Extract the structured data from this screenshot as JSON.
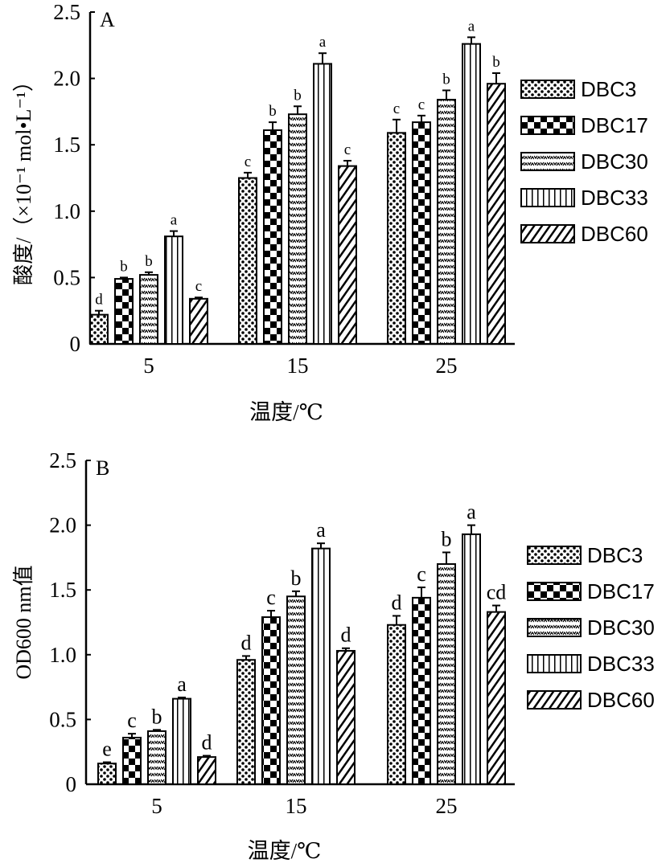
{
  "chart_data": [
    {
      "type": "bar",
      "panel": "A",
      "title": "A",
      "xlabel": "温度/℃",
      "ylabel": "酸度/（×10⁻¹ mol•L⁻¹）",
      "ylim": [
        0,
        2.5
      ],
      "yticks": [
        "0",
        "0.5",
        "1.0",
        "1.5",
        "2.0",
        "2.5"
      ],
      "categories": [
        "5",
        "15",
        "25"
      ],
      "legend_position": "right",
      "series": [
        {
          "name": "DBC3",
          "values": [
            0.22,
            1.25,
            1.59
          ],
          "errors": [
            0.03,
            0.04,
            0.1
          ],
          "letters": [
            "d",
            "c",
            "c"
          ]
        },
        {
          "name": "DBC17",
          "values": [
            0.49,
            1.61,
            1.67
          ],
          "errors": [
            0.01,
            0.06,
            0.05
          ],
          "letters": [
            "b",
            "b",
            "c"
          ]
        },
        {
          "name": "DBC30",
          "values": [
            0.52,
            1.73,
            1.84
          ],
          "errors": [
            0.02,
            0.06,
            0.07
          ],
          "letters": [
            "b",
            "b",
            "b"
          ]
        },
        {
          "name": "DBC33",
          "values": [
            0.81,
            2.11,
            2.26
          ],
          "errors": [
            0.04,
            0.08,
            0.05
          ],
          "letters": [
            "a",
            "a",
            "a"
          ]
        },
        {
          "name": "DBC60",
          "values": [
            0.34,
            1.34,
            1.96
          ],
          "errors": [
            0.01,
            0.04,
            0.08
          ],
          "letters": [
            "c",
            "c",
            "b"
          ]
        }
      ]
    },
    {
      "type": "bar",
      "panel": "B",
      "title": "B",
      "xlabel": "温度/℃",
      "ylabel": "OD600 nm值",
      "ylim": [
        0,
        2.5
      ],
      "yticks": [
        "0",
        "0.5",
        "1.0",
        "1.5",
        "2.0",
        "2.5"
      ],
      "categories": [
        "5",
        "15",
        "25"
      ],
      "legend_position": "right",
      "series": [
        {
          "name": "DBC3",
          "values": [
            0.16,
            0.96,
            1.23
          ],
          "errors": [
            0.01,
            0.03,
            0.07
          ],
          "letters": [
            "e",
            "d",
            "d"
          ]
        },
        {
          "name": "DBC17",
          "values": [
            0.36,
            1.29,
            1.44
          ],
          "errors": [
            0.03,
            0.05,
            0.08
          ],
          "letters": [
            "c",
            "c",
            "c"
          ]
        },
        {
          "name": "DBC30",
          "values": [
            0.41,
            1.45,
            1.7
          ],
          "errors": [
            0.01,
            0.04,
            0.09
          ],
          "letters": [
            "b",
            "b",
            "b"
          ]
        },
        {
          "name": "DBC33",
          "values": [
            0.66,
            1.82,
            1.93
          ],
          "errors": [
            0.01,
            0.04,
            0.07
          ],
          "letters": [
            "a",
            "a",
            "a"
          ]
        },
        {
          "name": "DBC60",
          "values": [
            0.21,
            1.03,
            1.33
          ],
          "errors": [
            0.01,
            0.02,
            0.05
          ],
          "letters": [
            "d",
            "d",
            "cd"
          ]
        }
      ]
    }
  ]
}
